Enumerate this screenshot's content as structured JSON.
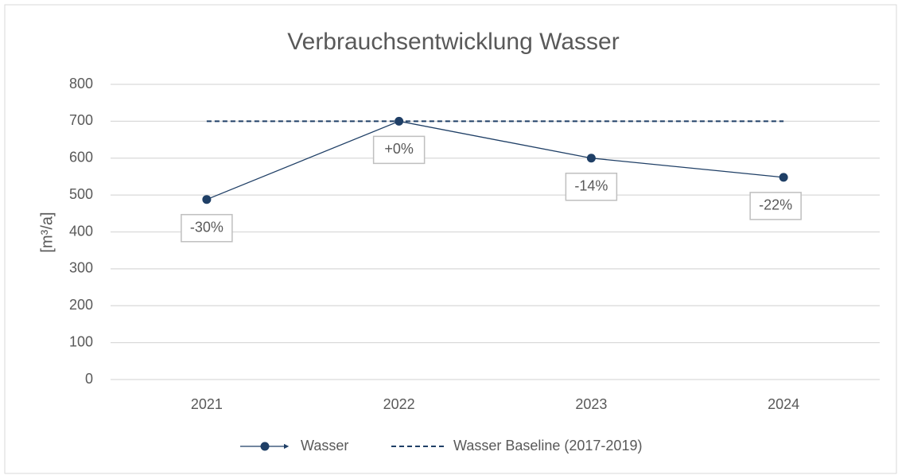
{
  "chart_data": {
    "type": "line",
    "title": "Verbrauchsentwicklung Wasser",
    "y_label": "[m³/a]",
    "categories": [
      "2021",
      "2022",
      "2023",
      "2024"
    ],
    "series": [
      {
        "name": "Wasser",
        "color": "#1f3f66",
        "values": [
          488,
          700,
          600,
          548
        ],
        "value_labels": [
          "-30%",
          "+0%",
          "-14%",
          "-22%"
        ]
      },
      {
        "name": "Wasser Baseline (2017-2019)",
        "color": "#1f3f66",
        "dashed": true,
        "values": [
          700,
          700,
          700,
          700
        ]
      }
    ],
    "ylim": [
      0,
      800
    ],
    "yticks": [
      0,
      100,
      200,
      300,
      400,
      500,
      600,
      700,
      800
    ],
    "grid": true,
    "legend": "bottom"
  }
}
